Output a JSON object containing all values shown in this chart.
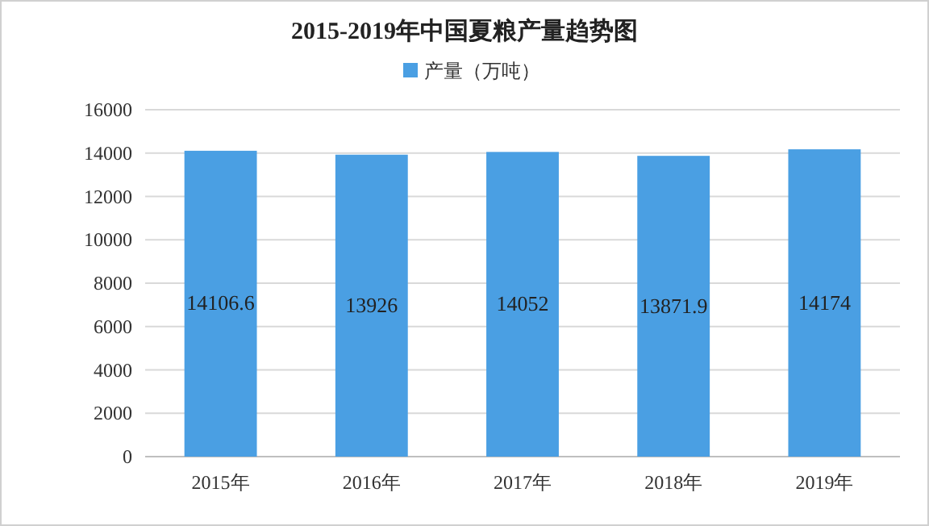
{
  "chart_data": {
    "type": "bar",
    "title": "2015-2019年中国夏粮产量趋势图",
    "categories": [
      "2015年",
      "2016年",
      "2017年",
      "2018年",
      "2019年"
    ],
    "series": [
      {
        "name": "产量（万吨）",
        "color": "#4a9fe3",
        "values": [
          14106.6,
          13926,
          14052,
          13871.9,
          14174
        ]
      }
    ],
    "ylim": [
      0,
      16000
    ],
    "yticks": [
      0,
      2000,
      4000,
      6000,
      8000,
      10000,
      12000,
      14000,
      16000
    ],
    "grid": "y",
    "legend": "top",
    "data_labels": true
  }
}
